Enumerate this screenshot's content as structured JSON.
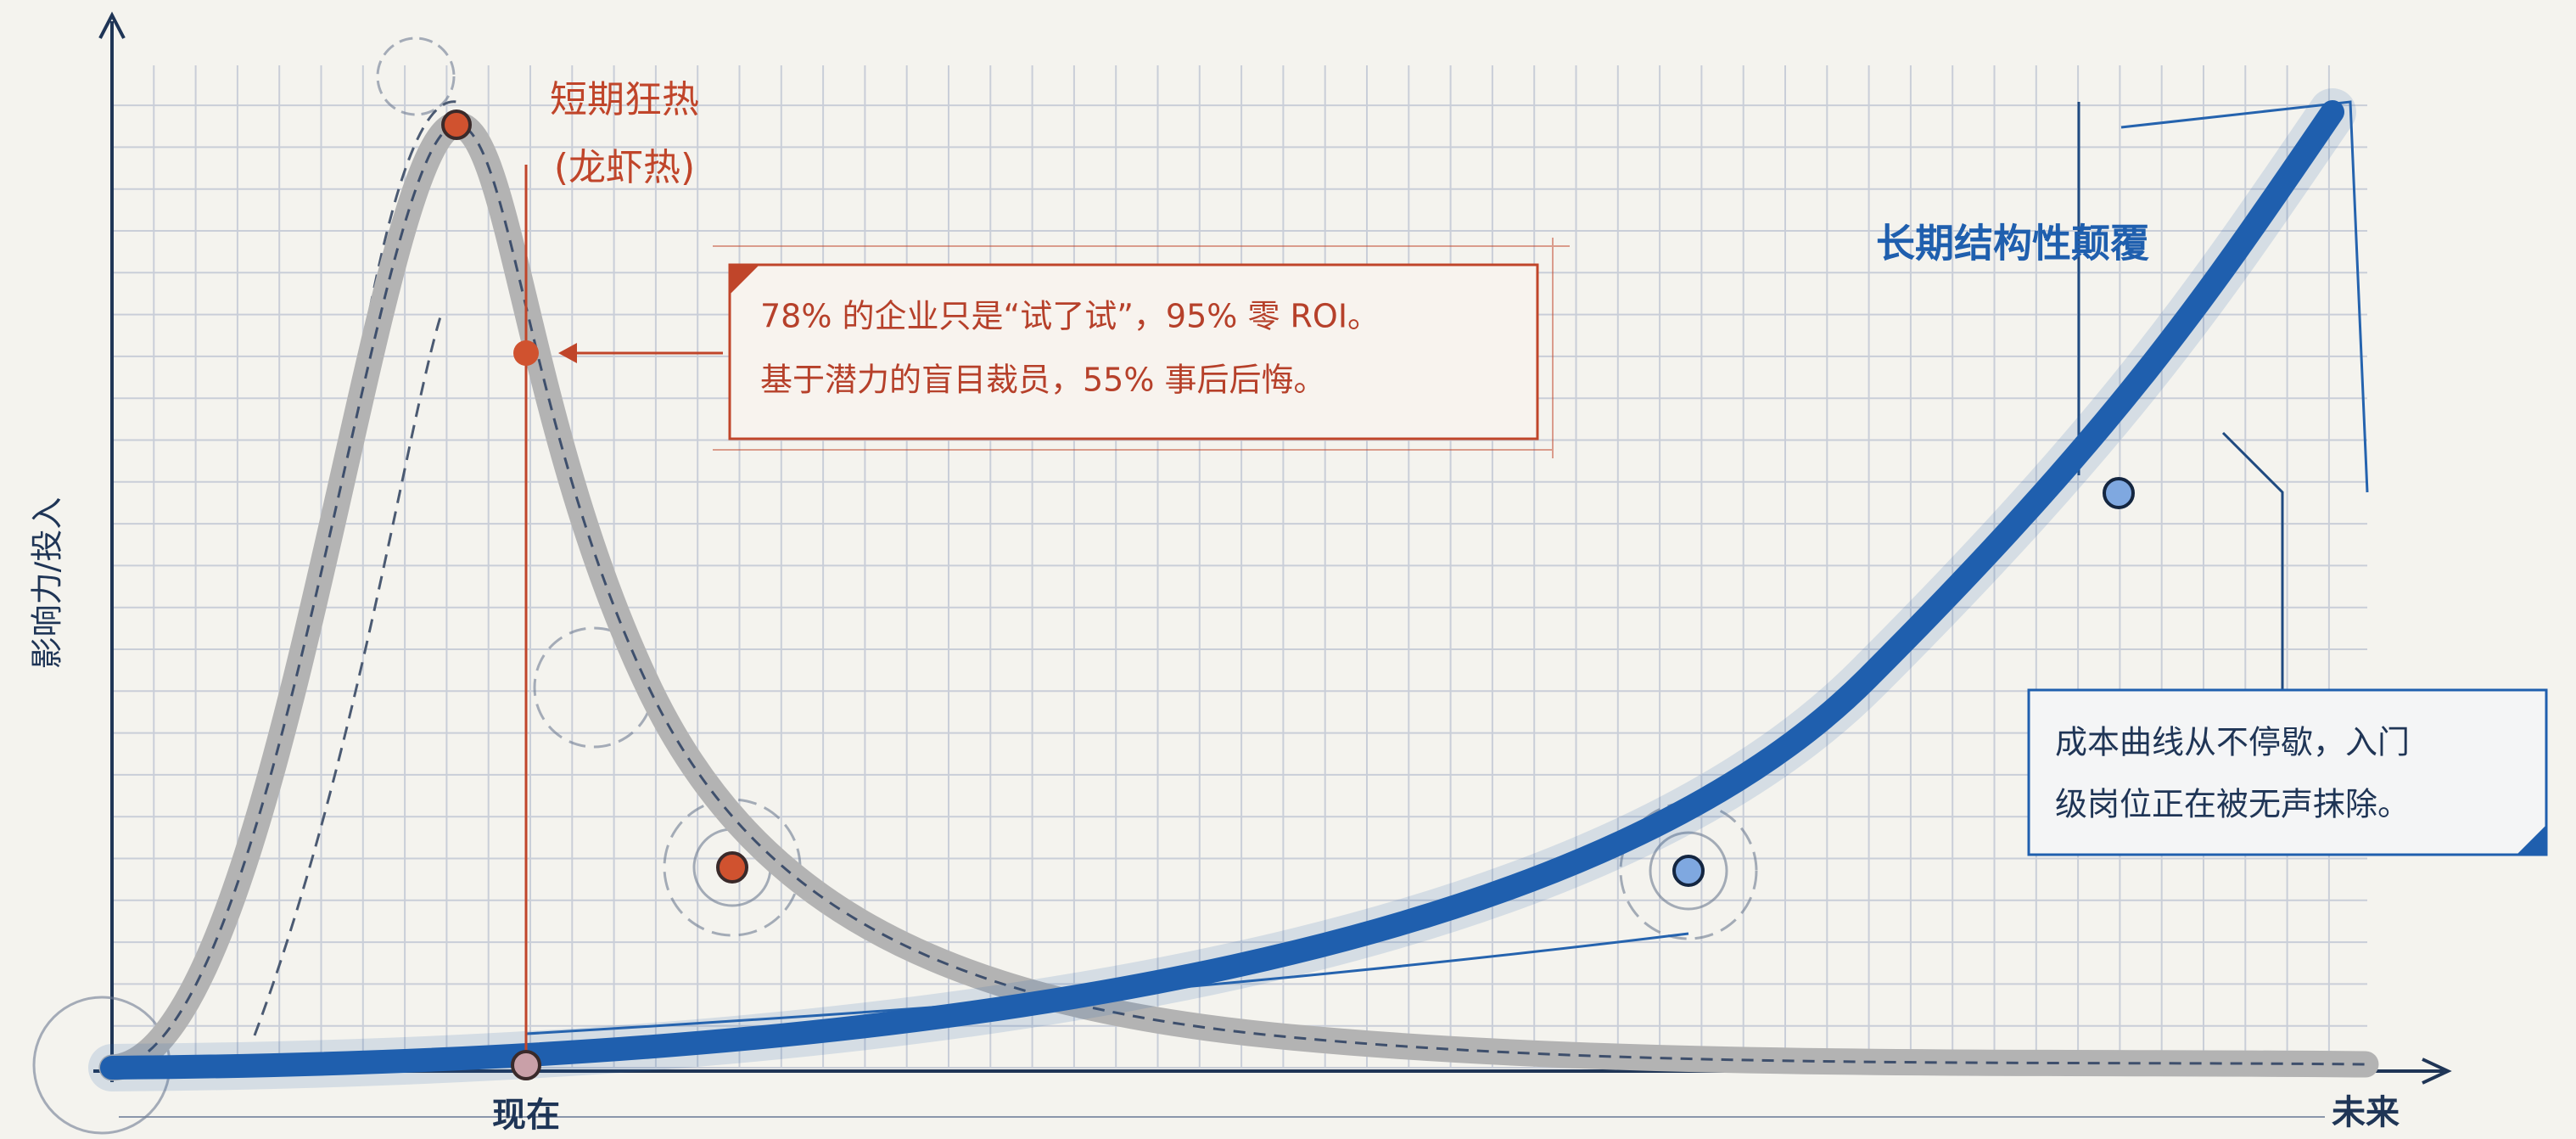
{
  "y_axis_label": "影响力/投入",
  "x_axis": {
    "start": "现在",
    "end": "未来"
  },
  "hype": {
    "label_lines": [
      "短期狂热",
      "(龙虾热)"
    ],
    "callout_lines": [
      "78% 的企业只是“试了试”，95% 零 ROI。",
      "基于潜力的盲目裁员，55% 事后后悔。"
    ]
  },
  "disruption": {
    "label": "长期结构性颠覆",
    "callout_lines": [
      "成本曲线从不停歇，入门",
      "级岗位正在被无声抹除。"
    ]
  }
}
